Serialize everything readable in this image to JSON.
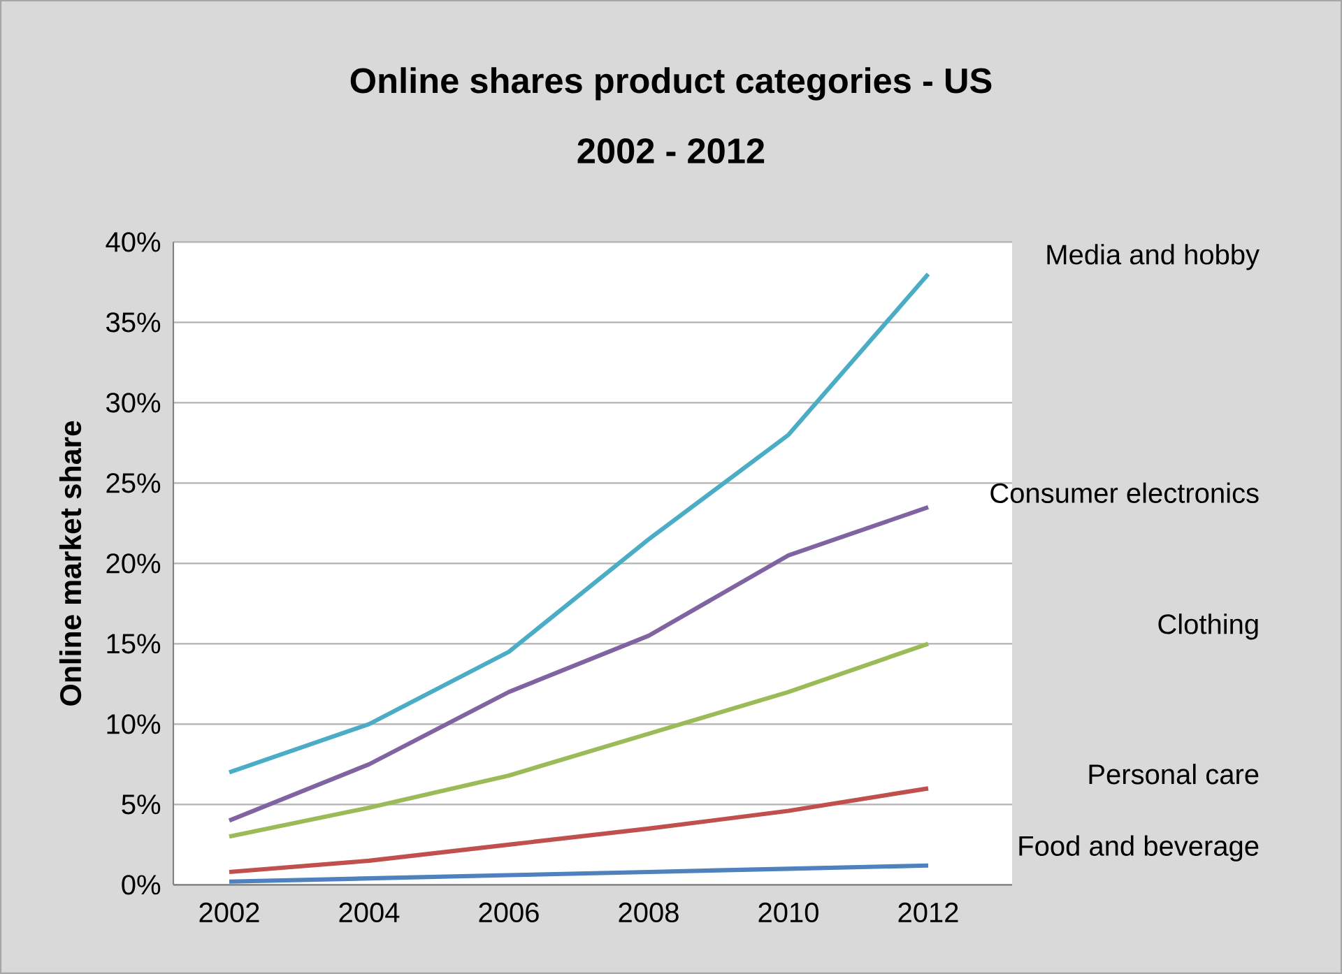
{
  "chart_data": {
    "type": "line",
    "title": "Online shares product categories - US",
    "subtitle": "2002 - 2012",
    "ylabel": "Online market share",
    "categories": [
      "2002",
      "2004",
      "2006",
      "2008",
      "2010",
      "2012"
    ],
    "series": [
      {
        "name": "Media and hobby",
        "color": "#4bacc6",
        "values": [
          7,
          10,
          14.5,
          21.5,
          28,
          38
        ]
      },
      {
        "name": "Consumer electronics",
        "color": "#8064a2",
        "values": [
          4,
          7.5,
          12,
          15.5,
          20.5,
          23.5
        ]
      },
      {
        "name": "Clothing",
        "color": "#9bbb59",
        "values": [
          3,
          4.8,
          6.8,
          9.4,
          12,
          15
        ]
      },
      {
        "name": "Personal care",
        "color": "#c0504d",
        "values": [
          0.8,
          1.5,
          2.5,
          3.5,
          4.6,
          6
        ]
      },
      {
        "name": "Food and beverage",
        "color": "#4f81bd",
        "values": [
          0.2,
          0.4,
          0.6,
          0.8,
          1,
          1.2
        ]
      }
    ],
    "ylim": [
      0,
      40
    ],
    "yticks": [
      {
        "value": 0,
        "label": "0%"
      },
      {
        "value": 5,
        "label": "5%"
      },
      {
        "value": 10,
        "label": "10%"
      },
      {
        "value": 15,
        "label": "15%"
      },
      {
        "value": 20,
        "label": "20%"
      },
      {
        "value": 25,
        "label": "25%"
      },
      {
        "value": 30,
        "label": "30%"
      },
      {
        "value": 35,
        "label": "35%"
      },
      {
        "value": 40,
        "label": "40%"
      }
    ],
    "grid": "y",
    "marker": "none",
    "line_style": "solid"
  }
}
